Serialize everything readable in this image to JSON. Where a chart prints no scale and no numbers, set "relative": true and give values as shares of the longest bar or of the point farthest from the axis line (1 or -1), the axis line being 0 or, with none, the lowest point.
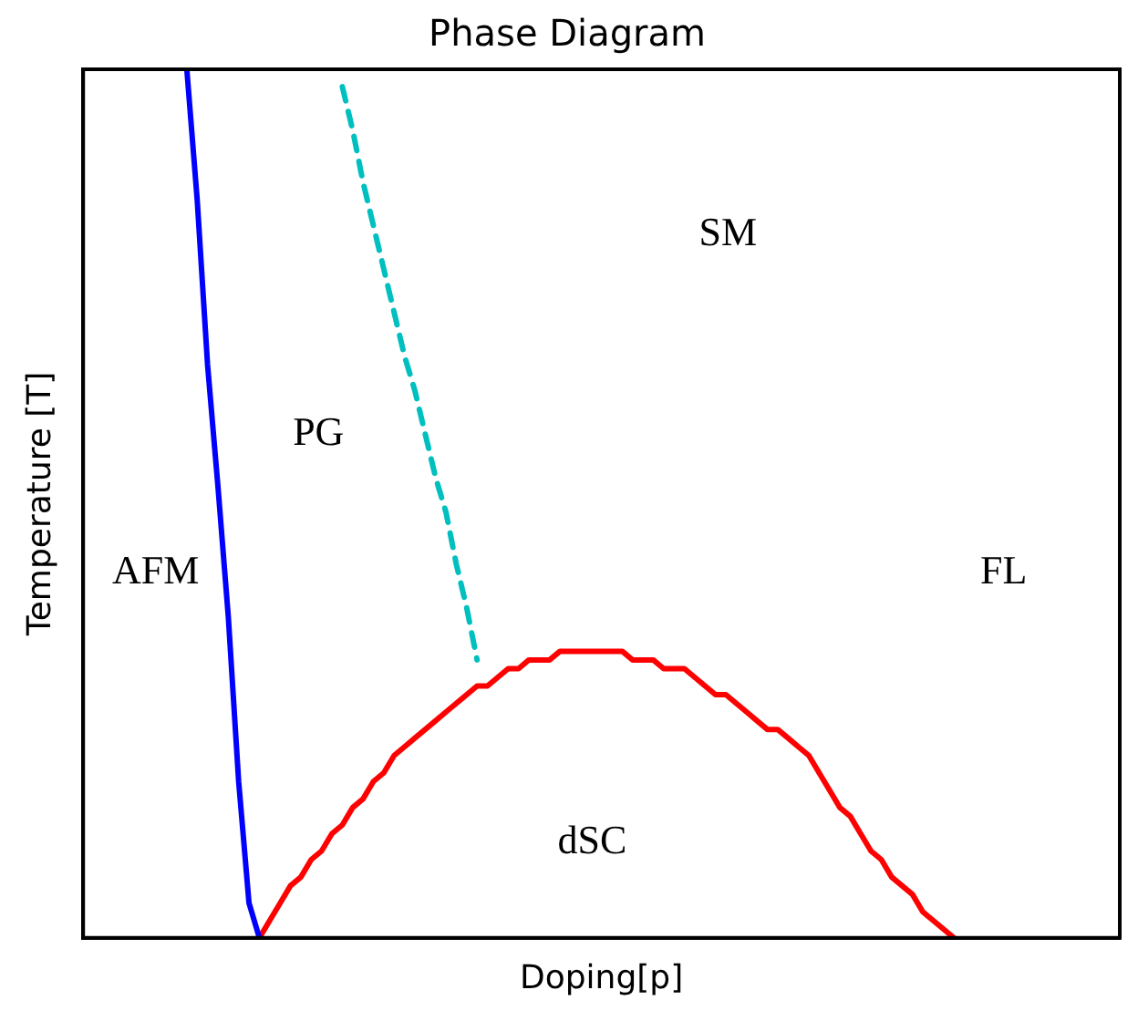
{
  "chart_data": {
    "type": "line",
    "title": "Phase Diagram",
    "xlabel": "Doping[p]",
    "ylabel": "Temperature [T]",
    "relative": true,
    "tick_labels": false,
    "grid": false,
    "legend": false,
    "marker": "none",
    "annotations": [
      "AFM",
      "PG",
      "SM",
      "FL",
      "dSC"
    ],
    "categories": [
      null,
      null,
      null,
      null,
      null,
      null,
      null,
      null,
      null,
      null,
      null,
      null,
      null,
      null,
      null,
      null,
      null,
      null,
      null,
      null,
      null,
      null,
      null,
      null,
      null,
      null,
      null,
      null,
      null,
      null,
      null,
      null,
      null,
      null,
      null,
      null,
      null,
      null,
      null,
      null,
      null,
      null,
      null,
      null,
      null,
      null,
      null,
      null,
      null,
      null,
      null,
      null,
      null,
      null,
      null,
      null,
      null,
      null,
      null,
      null,
      null,
      null,
      null,
      null,
      null,
      null,
      null,
      null,
      null,
      null,
      null,
      null,
      null,
      null,
      null,
      null,
      null,
      null,
      null,
      null,
      null,
      null,
      null,
      null,
      null,
      null,
      null,
      null,
      null,
      null,
      null,
      null,
      null,
      null,
      null,
      null,
      null,
      null,
      null,
      null,
      null
    ],
    "series": [
      {
        "color": "#0000ff",
        "line_style": "solid",
        "values": [
          null,
          null,
          null,
          null,
          null,
          null,
          null,
          null,
          null,
          null,
          1.0,
          0.85,
          0.66,
          0.52,
          0.37,
          0.18,
          0.04,
          0,
          null,
          null,
          null,
          null,
          null,
          null,
          null,
          null,
          null,
          null,
          null,
          null,
          null,
          null,
          null,
          null,
          null,
          null,
          null,
          null,
          null,
          null,
          null,
          null,
          null,
          null,
          null,
          null,
          null,
          null,
          null,
          null,
          null,
          null,
          null,
          null,
          null,
          null,
          null,
          null,
          null,
          null,
          null,
          null,
          null,
          null,
          null,
          null,
          null,
          null,
          null,
          null,
          null,
          null,
          null,
          null,
          null,
          null,
          null,
          null,
          null,
          null,
          null,
          null,
          null,
          null,
          null,
          null,
          null,
          null,
          null,
          null,
          null,
          null,
          null,
          null,
          null,
          null,
          null,
          null,
          null,
          null,
          null
        ]
      },
      {
        "color": "#00bfbf",
        "line_style": "dashed",
        "values": [
          null,
          null,
          null,
          null,
          null,
          null,
          null,
          null,
          null,
          null,
          null,
          null,
          null,
          null,
          null,
          null,
          null,
          null,
          null,
          null,
          null,
          null,
          null,
          null,
          null,
          0.98,
          0.93,
          0.87,
          0.82,
          0.77,
          0.72,
          0.67,
          0.63,
          0.58,
          0.53,
          0.49,
          0.43,
          0.38,
          0.32,
          null,
          null,
          null,
          null,
          null,
          null,
          null,
          null,
          null,
          null,
          null,
          null,
          null,
          null,
          null,
          null,
          null,
          null,
          null,
          null,
          null,
          null,
          null,
          null,
          null,
          null,
          null,
          null,
          null,
          null,
          null,
          null,
          null,
          null,
          null,
          null,
          null,
          null,
          null,
          null,
          null,
          null,
          null,
          null,
          null,
          null,
          null,
          null,
          null,
          null,
          null,
          null,
          null,
          null,
          null,
          null,
          null,
          null,
          null,
          null,
          null,
          null
        ]
      },
      {
        "color": "#ff0000",
        "line_style": "solid",
        "values": [
          null,
          null,
          null,
          null,
          null,
          null,
          null,
          null,
          null,
          null,
          null,
          null,
          null,
          null,
          null,
          null,
          null,
          0,
          0.02,
          0.04,
          0.06,
          0.07,
          0.09,
          0.1,
          0.12,
          0.13,
          0.15,
          0.16,
          0.18,
          0.19,
          0.21,
          0.22,
          0.23,
          0.24,
          0.25,
          0.26,
          0.27,
          0.28,
          0.29,
          0.29,
          0.3,
          0.31,
          0.31,
          0.32,
          0.32,
          0.32,
          0.33,
          0.33,
          0.33,
          0.33,
          0.33,
          0.33,
          0.33,
          0.32,
          0.32,
          0.32,
          0.31,
          0.31,
          0.31,
          0.3,
          0.29,
          0.28,
          0.28,
          0.27,
          0.26,
          0.25,
          0.24,
          0.24,
          0.23,
          0.22,
          0.21,
          0.19,
          0.17,
          0.15,
          0.14,
          0.12,
          0.1,
          0.09,
          0.07,
          0.06,
          0.05,
          0.03,
          0.02,
          0.01,
          0,
          null,
          null,
          null,
          null,
          null,
          null,
          null,
          null,
          null,
          null,
          null,
          null,
          null,
          null,
          null,
          null
        ]
      }
    ]
  }
}
